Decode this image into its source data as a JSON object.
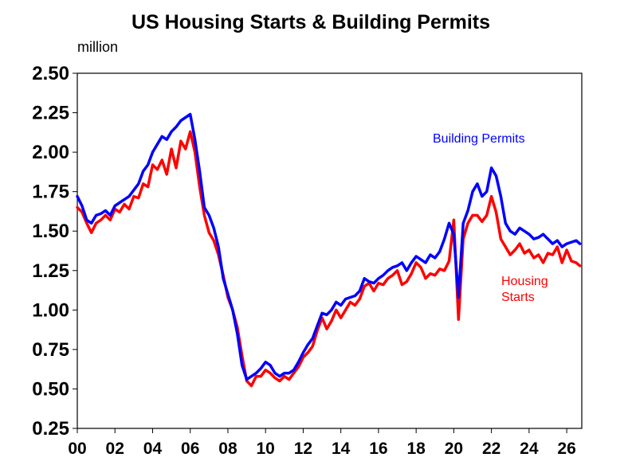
{
  "chart_data": {
    "type": "line",
    "title": "US Housing Starts & Building Permits",
    "ylabel": "million",
    "xlabel": "",
    "xlim": [
      2000,
      2026.8
    ],
    "ylim": [
      0.25,
      2.5
    ],
    "y_ticks": [
      "2.50",
      "2.25",
      "2.00",
      "1.75",
      "1.50",
      "1.25",
      "1.00",
      "0.75",
      "0.50",
      "0.25"
    ],
    "y_tick_values": [
      2.5,
      2.25,
      2.0,
      1.75,
      1.5,
      1.25,
      1.0,
      0.75,
      0.5,
      0.25
    ],
    "x_ticks": [
      "00",
      "02",
      "04",
      "06",
      "08",
      "10",
      "12",
      "14",
      "16",
      "18",
      "20",
      "22",
      "24",
      "26"
    ],
    "x_tick_values": [
      2000,
      2002,
      2004,
      2006,
      2008,
      2010,
      2012,
      2014,
      2016,
      2018,
      2020,
      2022,
      2024,
      2026
    ],
    "grid": false,
    "legend": "inline labels",
    "series": [
      {
        "name": "Housing Starts",
        "label_lines": [
          "Housing",
          "Starts"
        ],
        "color": "#ff0000",
        "x": [
          2000.0,
          2000.25,
          2000.5,
          2000.75,
          2001.0,
          2001.25,
          2001.5,
          2001.75,
          2002.0,
          2002.25,
          2002.5,
          2002.75,
          2003.0,
          2003.25,
          2003.5,
          2003.75,
          2004.0,
          2004.25,
          2004.5,
          2004.75,
          2005.0,
          2005.25,
          2005.5,
          2005.75,
          2006.0,
          2006.25,
          2006.5,
          2006.75,
          2007.0,
          2007.25,
          2007.5,
          2007.75,
          2008.0,
          2008.25,
          2008.5,
          2008.75,
          2009.0,
          2009.25,
          2009.5,
          2009.75,
          2010.0,
          2010.25,
          2010.5,
          2010.75,
          2011.0,
          2011.25,
          2011.5,
          2011.75,
          2012.0,
          2012.25,
          2012.5,
          2012.75,
          2013.0,
          2013.25,
          2013.5,
          2013.75,
          2014.0,
          2014.25,
          2014.5,
          2014.75,
          2015.0,
          2015.25,
          2015.5,
          2015.75,
          2016.0,
          2016.25,
          2016.5,
          2016.75,
          2017.0,
          2017.25,
          2017.5,
          2017.75,
          2018.0,
          2018.25,
          2018.5,
          2018.75,
          2019.0,
          2019.25,
          2019.5,
          2019.75,
          2020.0,
          2020.25,
          2020.5,
          2020.75,
          2021.0,
          2021.25,
          2021.5,
          2021.75,
          2022.0,
          2022.25,
          2022.5,
          2022.75,
          2023.0,
          2023.25,
          2023.5,
          2023.75,
          2024.0,
          2024.25,
          2024.5,
          2024.75,
          2025.0,
          2025.25,
          2025.5,
          2025.75,
          2026.0,
          2026.25,
          2026.5,
          2026.7
        ],
        "y": [
          1.65,
          1.62,
          1.55,
          1.49,
          1.55,
          1.57,
          1.6,
          1.57,
          1.64,
          1.62,
          1.67,
          1.64,
          1.72,
          1.71,
          1.8,
          1.78,
          1.92,
          1.89,
          1.95,
          1.86,
          2.02,
          1.9,
          2.07,
          2.02,
          2.13,
          2.0,
          1.78,
          1.6,
          1.49,
          1.44,
          1.35,
          1.22,
          1.08,
          1.0,
          0.89,
          0.71,
          0.55,
          0.52,
          0.58,
          0.58,
          0.62,
          0.6,
          0.57,
          0.55,
          0.58,
          0.56,
          0.6,
          0.64,
          0.7,
          0.73,
          0.77,
          0.87,
          0.95,
          0.88,
          0.93,
          1.0,
          0.95,
          1.0,
          1.05,
          1.03,
          1.07,
          1.15,
          1.17,
          1.12,
          1.17,
          1.16,
          1.2,
          1.22,
          1.25,
          1.16,
          1.18,
          1.23,
          1.3,
          1.27,
          1.2,
          1.23,
          1.22,
          1.26,
          1.25,
          1.31,
          1.57,
          0.94,
          1.45,
          1.55,
          1.6,
          1.6,
          1.56,
          1.6,
          1.72,
          1.62,
          1.45,
          1.4,
          1.35,
          1.38,
          1.42,
          1.36,
          1.38,
          1.33,
          1.35,
          1.3,
          1.36,
          1.35,
          1.4,
          1.3,
          1.38,
          1.31,
          1.3,
          1.28
        ]
      },
      {
        "name": "Building Permits",
        "color": "#0000ff",
        "x": [
          2000.0,
          2000.25,
          2000.5,
          2000.75,
          2001.0,
          2001.25,
          2001.5,
          2001.75,
          2002.0,
          2002.25,
          2002.5,
          2002.75,
          2003.0,
          2003.25,
          2003.5,
          2003.75,
          2004.0,
          2004.25,
          2004.5,
          2004.75,
          2005.0,
          2005.25,
          2005.5,
          2005.75,
          2006.0,
          2006.25,
          2006.5,
          2006.75,
          2007.0,
          2007.25,
          2007.5,
          2007.75,
          2008.0,
          2008.25,
          2008.5,
          2008.75,
          2009.0,
          2009.25,
          2009.5,
          2009.75,
          2010.0,
          2010.25,
          2010.5,
          2010.75,
          2011.0,
          2011.25,
          2011.5,
          2011.75,
          2012.0,
          2012.25,
          2012.5,
          2012.75,
          2013.0,
          2013.25,
          2013.5,
          2013.75,
          2014.0,
          2014.25,
          2014.5,
          2014.75,
          2015.0,
          2015.25,
          2015.5,
          2015.75,
          2016.0,
          2016.25,
          2016.5,
          2016.75,
          2017.0,
          2017.25,
          2017.5,
          2017.75,
          2018.0,
          2018.25,
          2018.5,
          2018.75,
          2019.0,
          2019.25,
          2019.5,
          2019.75,
          2020.0,
          2020.25,
          2020.5,
          2020.75,
          2021.0,
          2021.25,
          2021.5,
          2021.75,
          2022.0,
          2022.25,
          2022.5,
          2022.75,
          2023.0,
          2023.25,
          2023.5,
          2023.75,
          2024.0,
          2024.25,
          2024.5,
          2024.75,
          2025.0,
          2025.25,
          2025.5,
          2025.75,
          2026.0,
          2026.25,
          2026.5,
          2026.7
        ],
        "y": [
          1.72,
          1.66,
          1.57,
          1.55,
          1.6,
          1.61,
          1.63,
          1.6,
          1.66,
          1.68,
          1.7,
          1.72,
          1.76,
          1.8,
          1.88,
          1.92,
          2.0,
          2.05,
          2.1,
          2.08,
          2.13,
          2.16,
          2.2,
          2.22,
          2.24,
          2.08,
          1.88,
          1.65,
          1.6,
          1.52,
          1.4,
          1.2,
          1.1,
          1.0,
          0.85,
          0.65,
          0.56,
          0.58,
          0.6,
          0.63,
          0.67,
          0.65,
          0.6,
          0.58,
          0.6,
          0.6,
          0.62,
          0.67,
          0.73,
          0.78,
          0.82,
          0.9,
          0.98,
          0.97,
          1.0,
          1.05,
          1.03,
          1.07,
          1.08,
          1.09,
          1.12,
          1.2,
          1.18,
          1.17,
          1.2,
          1.22,
          1.25,
          1.27,
          1.28,
          1.3,
          1.25,
          1.3,
          1.34,
          1.32,
          1.3,
          1.35,
          1.33,
          1.37,
          1.45,
          1.55,
          1.48,
          1.08,
          1.55,
          1.63,
          1.75,
          1.8,
          1.72,
          1.75,
          1.9,
          1.85,
          1.72,
          1.55,
          1.5,
          1.48,
          1.52,
          1.5,
          1.48,
          1.45,
          1.46,
          1.48,
          1.45,
          1.42,
          1.44,
          1.4,
          1.42,
          1.43,
          1.44,
          1.42
        ]
      }
    ]
  }
}
